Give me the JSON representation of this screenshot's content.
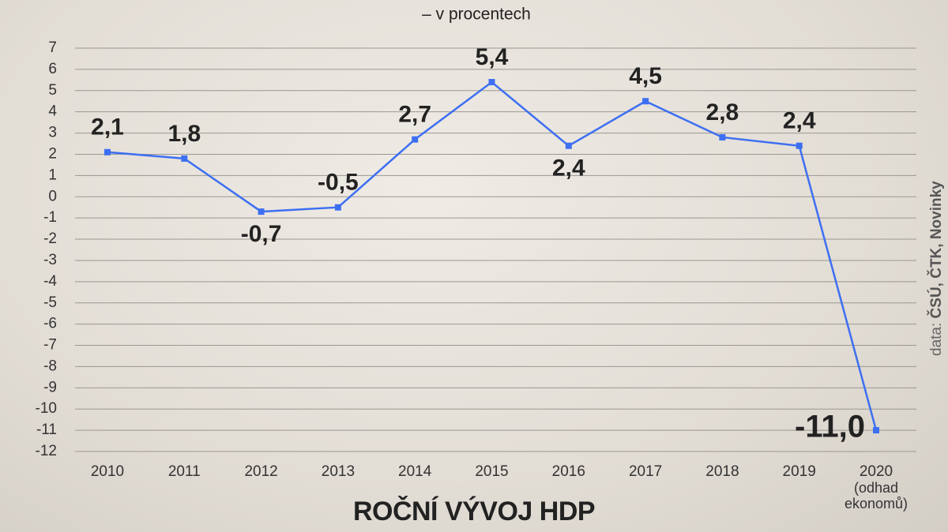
{
  "chart_data": {
    "type": "line",
    "title": "ROČNÍ VÝVOJ HDP",
    "subtitle": "– v procentech",
    "source_prefix": "data:",
    "source": "ČSÚ, ČTK, Novinky",
    "categories": [
      "2010",
      "2011",
      "2012",
      "2013",
      "2014",
      "2015",
      "2016",
      "2017",
      "2018",
      "2019",
      "2020"
    ],
    "category_note": "(odhad ekonomů)",
    "series": [
      {
        "color": "#3d6ff2",
        "values": [
          2.1,
          1.8,
          -0.7,
          -0.5,
          2.7,
          5.4,
          2.4,
          4.5,
          2.8,
          2.4,
          -11.0
        ],
        "value_labels": [
          "2,1",
          "1,8",
          "-0,7",
          "-0,5",
          "2,7",
          "5,4",
          "2,4",
          "4,5",
          "2,8",
          "2,4",
          "-11,0"
        ]
      }
    ],
    "ylim": [
      -12,
      7
    ],
    "yticks": [
      7,
      6,
      5,
      4,
      3,
      2,
      1,
      0,
      -1,
      -2,
      -3,
      -4,
      -5,
      -6,
      -7,
      -8,
      -9,
      -10,
      -11,
      -12
    ],
    "grid": true
  }
}
